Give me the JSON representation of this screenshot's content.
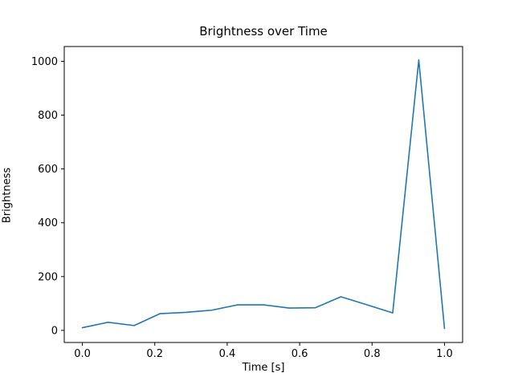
{
  "chart_data": {
    "type": "line",
    "title": "Brightness over Time",
    "xlabel": "Time [s]",
    "ylabel": "Brightness",
    "line_color": "#1f77b4",
    "x": [
      0.0,
      0.071,
      0.143,
      0.214,
      0.286,
      0.357,
      0.429,
      0.5,
      0.571,
      0.643,
      0.714,
      0.786,
      0.857,
      0.929,
      1.0
    ],
    "y": [
      10,
      30,
      18,
      62,
      67,
      75,
      95,
      95,
      83,
      84,
      125,
      95,
      65,
      1005,
      7
    ],
    "xlim": [
      -0.05,
      1.05
    ],
    "ylim": [
      -45,
      1055
    ],
    "xticks": [
      0.0,
      0.2,
      0.4,
      0.6,
      0.8,
      1.0
    ],
    "xtick_labels": [
      "0.0",
      "0.2",
      "0.4",
      "0.6",
      "0.8",
      "1.0"
    ],
    "yticks": [
      0,
      200,
      400,
      600,
      800,
      1000
    ],
    "ytick_labels": [
      "0",
      "200",
      "400",
      "600",
      "800",
      "1000"
    ],
    "grid": false,
    "legend": null
  }
}
